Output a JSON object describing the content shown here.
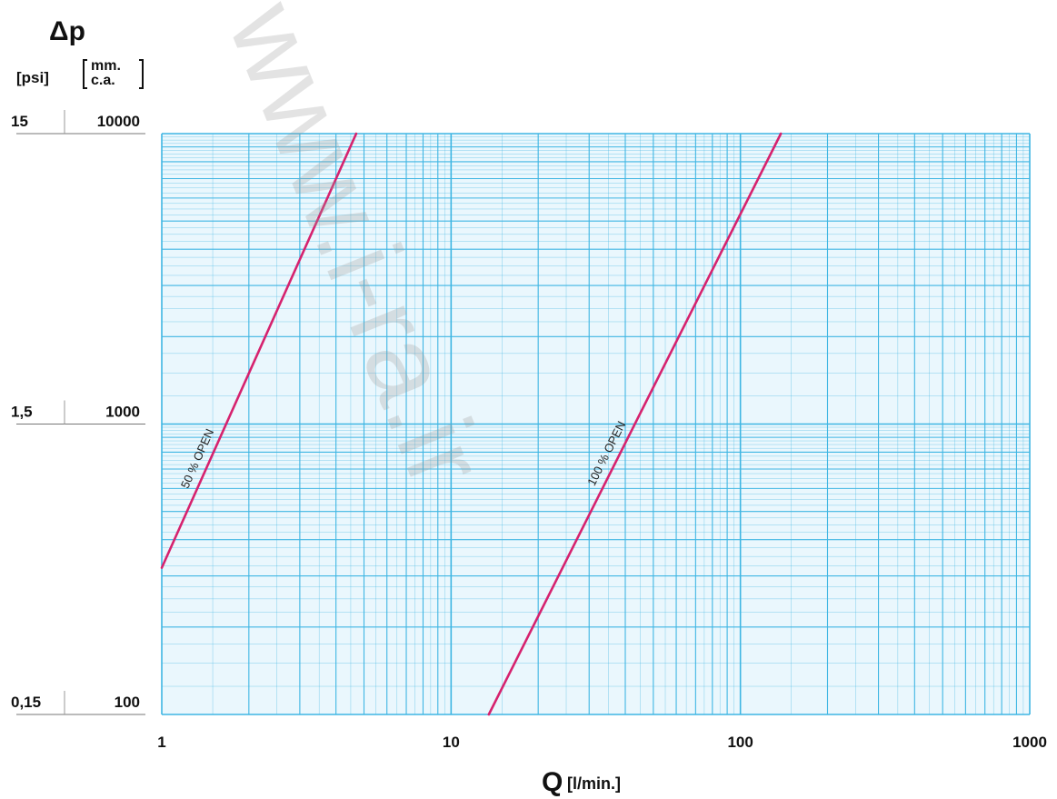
{
  "chart_data": {
    "type": "line",
    "title": "",
    "ylabel": "Δp",
    "ylabel_unit_psi": "[psi]",
    "ylabel_unit_mm_line1": "mm.",
    "ylabel_unit_mm_line2": "c.a.",
    "xlabel": "Q",
    "xlabel_unit": "[l/min.]",
    "x_scale": "log",
    "y_scale": "log",
    "xlim": [
      1,
      1000
    ],
    "ylim": [
      100,
      10000
    ],
    "x_ticks": [
      "1",
      "10",
      "100",
      "1000"
    ],
    "y_ticks_mm": [
      "100",
      "1000",
      "10000"
    ],
    "y_ticks_psi": [
      "0,15",
      "1,5",
      "15"
    ],
    "grid": true,
    "grid_color": "#3fb6e3",
    "line_color": "#d6226e",
    "series": [
      {
        "name": "50 % OPEN",
        "x": [
          1,
          4.7
        ],
        "y": [
          320,
          10000
        ]
      },
      {
        "name": "100 % OPEN",
        "x": [
          13.5,
          138
        ],
        "y": [
          100,
          10000
        ]
      }
    ]
  },
  "watermark": "www.i-ra.ir"
}
